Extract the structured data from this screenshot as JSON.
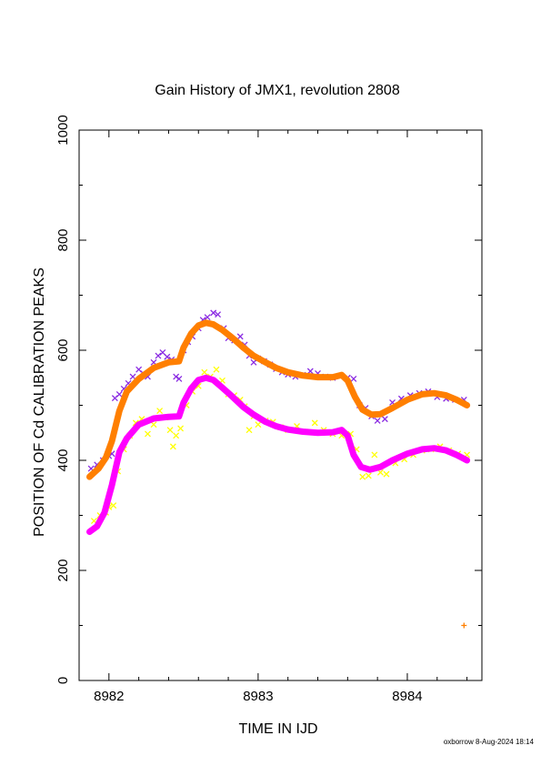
{
  "chart_data": {
    "type": "scatter",
    "title": "Gain History of JMX1, revolution 2808",
    "xlabel": "TIME IN IJD",
    "ylabel": "POSITION OF Cd CALIBRATION PEAKS",
    "xlim": [
      8981.8,
      8984.5
    ],
    "ylim": [
      0,
      1000
    ],
    "xticks": [
      8982,
      8983,
      8984
    ],
    "yticks": [
      0,
      200,
      400,
      600,
      800,
      1000
    ],
    "grid": false,
    "footer": "oxborrow  8-Aug-2024 18:14",
    "series": [
      {
        "color": "#8a2be2",
        "marker": "x",
        "points": [
          [
            8981.88,
            385
          ],
          [
            8981.92,
            392
          ],
          [
            8981.96,
            400
          ],
          [
            8982.0,
            408
          ],
          [
            8982.02,
            412
          ],
          [
            8982.04,
            513
          ],
          [
            8982.07,
            520
          ],
          [
            8982.1,
            530
          ],
          [
            8982.13,
            540
          ],
          [
            8982.16,
            552
          ],
          [
            8982.2,
            565
          ],
          [
            8982.23,
            558
          ],
          [
            8982.26,
            552
          ],
          [
            8982.3,
            578
          ],
          [
            8982.33,
            590
          ],
          [
            8982.36,
            596
          ],
          [
            8982.39,
            588
          ],
          [
            8982.42,
            583
          ],
          [
            8982.45,
            552
          ],
          [
            8982.47,
            548
          ],
          [
            8982.5,
            600
          ],
          [
            8982.53,
            615
          ],
          [
            8982.56,
            625
          ],
          [
            8982.6,
            640
          ],
          [
            8982.63,
            655
          ],
          [
            8982.66,
            660
          ],
          [
            8982.7,
            668
          ],
          [
            8982.73,
            665
          ],
          [
            8982.77,
            640
          ],
          [
            8982.8,
            622
          ],
          [
            8982.84,
            618
          ],
          [
            8982.88,
            625
          ],
          [
            8982.91,
            610
          ],
          [
            8982.94,
            590
          ],
          [
            8982.97,
            578
          ],
          [
            8983.0,
            585
          ],
          [
            8983.04,
            580
          ],
          [
            8983.08,
            574
          ],
          [
            8983.12,
            566
          ],
          [
            8983.16,
            560
          ],
          [
            8983.2,
            556
          ],
          [
            8983.25,
            552
          ],
          [
            8983.3,
            555
          ],
          [
            8983.35,
            562
          ],
          [
            8983.4,
            558
          ],
          [
            8983.45,
            552
          ],
          [
            8983.5,
            550
          ],
          [
            8983.55,
            553
          ],
          [
            8983.6,
            550
          ],
          [
            8983.64,
            548
          ],
          [
            8983.68,
            500
          ],
          [
            8983.72,
            495
          ],
          [
            8983.76,
            480
          ],
          [
            8983.8,
            472
          ],
          [
            8983.85,
            475
          ],
          [
            8983.9,
            505
          ],
          [
            8983.96,
            512
          ],
          [
            8984.02,
            518
          ],
          [
            8984.08,
            522
          ],
          [
            8984.14,
            525
          ],
          [
            8984.2,
            515
          ],
          [
            8984.26,
            512
          ],
          [
            8984.32,
            510
          ],
          [
            8984.38,
            510
          ]
        ]
      },
      {
        "color": "#ffff00",
        "marker": "x",
        "points": [
          [
            8981.9,
            290
          ],
          [
            8981.94,
            300
          ],
          [
            8981.98,
            305
          ],
          [
            8982.0,
            315
          ],
          [
            8982.03,
            318
          ],
          [
            8982.06,
            380
          ],
          [
            8982.1,
            420
          ],
          [
            8982.14,
            445
          ],
          [
            8982.18,
            468
          ],
          [
            8982.22,
            475
          ],
          [
            8982.26,
            448
          ],
          [
            8982.3,
            465
          ],
          [
            8982.34,
            490
          ],
          [
            8982.38,
            478
          ],
          [
            8982.41,
            455
          ],
          [
            8982.43,
            425
          ],
          [
            8982.45,
            445
          ],
          [
            8982.48,
            458
          ],
          [
            8982.52,
            500
          ],
          [
            8982.56,
            525
          ],
          [
            8982.6,
            535
          ],
          [
            8982.64,
            560
          ],
          [
            8982.68,
            552
          ],
          [
            8982.72,
            565
          ],
          [
            8982.76,
            545
          ],
          [
            8982.8,
            520
          ],
          [
            8982.84,
            518
          ],
          [
            8982.88,
            510
          ],
          [
            8982.91,
            498
          ],
          [
            8982.94,
            455
          ],
          [
            8982.97,
            480
          ],
          [
            8983.0,
            465
          ],
          [
            8983.05,
            472
          ],
          [
            8983.1,
            470
          ],
          [
            8983.15,
            460
          ],
          [
            8983.2,
            455
          ],
          [
            8983.26,
            462
          ],
          [
            8983.32,
            452
          ],
          [
            8983.38,
            468
          ],
          [
            8983.44,
            455
          ],
          [
            8983.5,
            448
          ],
          [
            8983.56,
            445
          ],
          [
            8983.62,
            448
          ],
          [
            8983.66,
            420
          ],
          [
            8983.7,
            370
          ],
          [
            8983.74,
            372
          ],
          [
            8983.78,
            410
          ],
          [
            8983.82,
            378
          ],
          [
            8983.86,
            375
          ],
          [
            8983.92,
            395
          ],
          [
            8983.98,
            402
          ],
          [
            8984.04,
            410
          ],
          [
            8984.1,
            418
          ],
          [
            8984.16,
            420
          ],
          [
            8984.22,
            425
          ],
          [
            8984.28,
            418
          ],
          [
            8984.34,
            412
          ],
          [
            8984.4,
            410
          ]
        ]
      },
      {
        "color": "#ff7f00",
        "marker": "+",
        "points": [
          [
            8984.38,
            100
          ]
        ]
      }
    ],
    "curves": [
      {
        "color": "#ff7f00",
        "points": [
          [
            8981.87,
            370
          ],
          [
            8981.93,
            385
          ],
          [
            8981.98,
            405
          ],
          [
            8982.02,
            435
          ],
          [
            8982.07,
            490
          ],
          [
            8982.12,
            525
          ],
          [
            8982.2,
            548
          ],
          [
            8982.3,
            568
          ],
          [
            8982.4,
            578
          ],
          [
            8982.47,
            580
          ],
          [
            8982.5,
            605
          ],
          [
            8982.55,
            630
          ],
          [
            8982.6,
            645
          ],
          [
            8982.65,
            650
          ],
          [
            8982.7,
            647
          ],
          [
            8982.76,
            637
          ],
          [
            8982.83,
            622
          ],
          [
            8982.9,
            605
          ],
          [
            8982.97,
            590
          ],
          [
            8983.05,
            578
          ],
          [
            8983.12,
            568
          ],
          [
            8983.2,
            560
          ],
          [
            8983.3,
            554
          ],
          [
            8983.4,
            551
          ],
          [
            8983.5,
            551
          ],
          [
            8983.56,
            555
          ],
          [
            8983.6,
            545
          ],
          [
            8983.65,
            515
          ],
          [
            8983.7,
            492
          ],
          [
            8983.76,
            483
          ],
          [
            8983.82,
            484
          ],
          [
            8983.9,
            495
          ],
          [
            8984.0,
            510
          ],
          [
            8984.1,
            520
          ],
          [
            8984.18,
            522
          ],
          [
            8984.26,
            518
          ],
          [
            8984.33,
            510
          ],
          [
            8984.4,
            500
          ]
        ]
      },
      {
        "color": "#ff00ff",
        "points": [
          [
            8981.87,
            270
          ],
          [
            8981.92,
            280
          ],
          [
            8981.97,
            305
          ],
          [
            8982.02,
            355
          ],
          [
            8982.07,
            415
          ],
          [
            8982.12,
            440
          ],
          [
            8982.2,
            465
          ],
          [
            8982.3,
            476
          ],
          [
            8982.4,
            479
          ],
          [
            8982.47,
            480
          ],
          [
            8982.5,
            505
          ],
          [
            8982.55,
            530
          ],
          [
            8982.6,
            546
          ],
          [
            8982.65,
            550
          ],
          [
            8982.7,
            546
          ],
          [
            8982.76,
            532
          ],
          [
            8982.83,
            515
          ],
          [
            8982.9,
            497
          ],
          [
            8982.97,
            483
          ],
          [
            8983.05,
            470
          ],
          [
            8983.12,
            462
          ],
          [
            8983.2,
            456
          ],
          [
            8983.3,
            452
          ],
          [
            8983.4,
            450
          ],
          [
            8983.5,
            451
          ],
          [
            8983.56,
            455
          ],
          [
            8983.6,
            445
          ],
          [
            8983.64,
            410
          ],
          [
            8983.69,
            388
          ],
          [
            8983.75,
            383
          ],
          [
            8983.82,
            388
          ],
          [
            8983.9,
            400
          ],
          [
            8984.0,
            412
          ],
          [
            8984.1,
            420
          ],
          [
            8984.18,
            422
          ],
          [
            8984.26,
            418
          ],
          [
            8984.33,
            410
          ],
          [
            8984.4,
            400
          ]
        ]
      }
    ]
  }
}
